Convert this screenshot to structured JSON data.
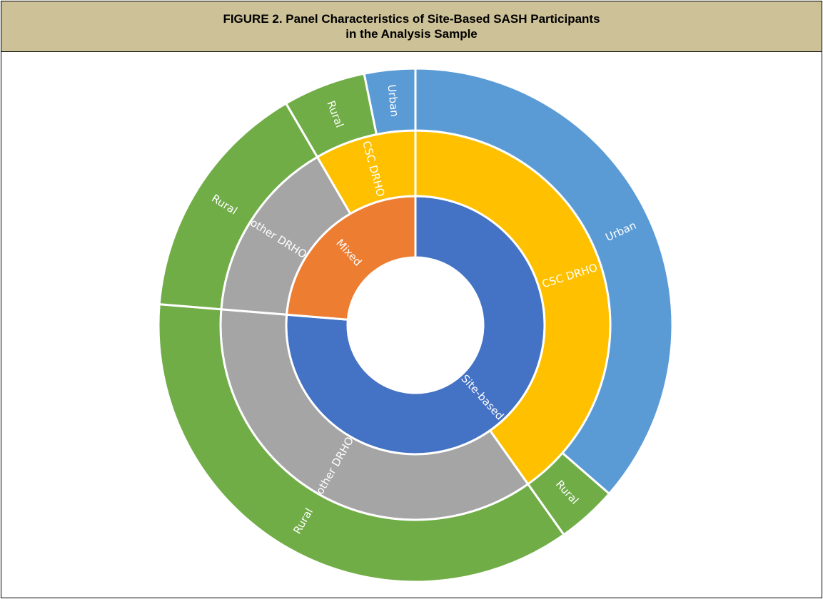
{
  "chart_data": {
    "type": "sunburst",
    "title": [
      "FIGURE 2. Panel Characteristics of Site-Based SASH Participants",
      "in the Analysis Sample"
    ],
    "segments": [
      {
        "name": "Site-based",
        "color": "#4472c4",
        "value": 76.3,
        "children": [
          {
            "name": "CSC DRHO",
            "color": "#ffc000",
            "value": 40.2,
            "children": [
              {
                "name": "Urban",
                "color": "#5b9bd5",
                "value": 36.4
              },
              {
                "name": "Rural",
                "color": "#70ad47",
                "value": 3.8
              }
            ]
          },
          {
            "name": "other DRHO",
            "color": "#a5a5a5",
            "value": 36.1,
            "children": [
              {
                "name": "Rural",
                "color": "#70ad47",
                "value": 36.1
              }
            ]
          }
        ]
      },
      {
        "name": "Mixed",
        "color": "#ed7d31",
        "value": 23.7,
        "children": [
          {
            "name": "other DRHO",
            "color": "#a5a5a5",
            "value": 15.3,
            "children": [
              {
                "name": "Rural",
                "color": "#70ad47",
                "value": 15.3
              }
            ]
          },
          {
            "name": "CSC DRHO",
            "color": "#ffc000",
            "value": 8.4,
            "children": [
              {
                "name": "Rural",
                "color": "#70ad47",
                "value": 5.2
              },
              {
                "name": "Urban",
                "color": "#5b9bd5",
                "value": 3.2
              }
            ]
          }
        ]
      }
    ]
  }
}
